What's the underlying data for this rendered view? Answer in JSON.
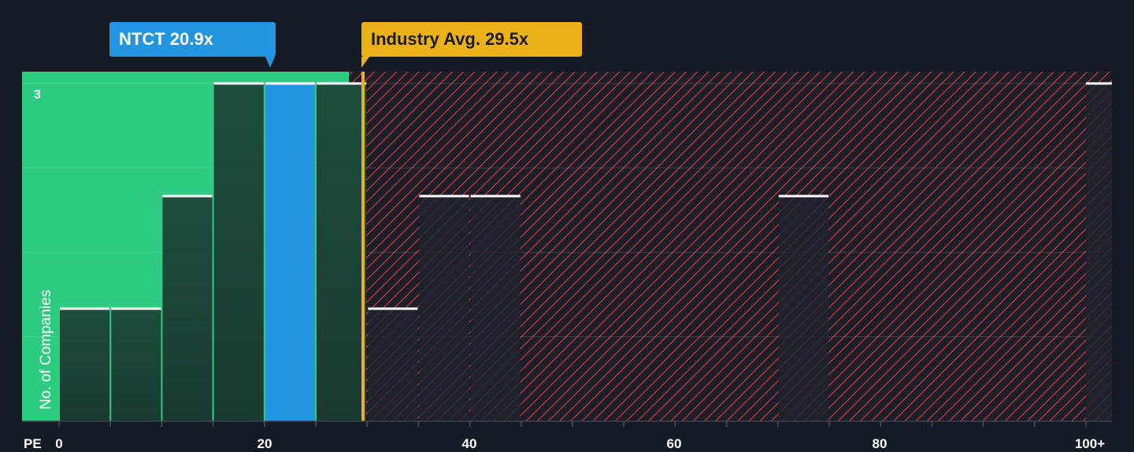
{
  "callouts": {
    "company": "NTCT 20.9x",
    "industry": "Industry Avg. 29.5x"
  },
  "colors": {
    "background": "#151b24",
    "fair_zone": "#2ecc80",
    "company_bar": "#2394e0",
    "industry": "#ebb118",
    "hatch": "#d23a3a"
  },
  "chart_data": {
    "type": "bar",
    "xlabel": "PE",
    "ylabel": "No. of Companies",
    "x_ticks": [
      "0",
      "20",
      "40",
      "60",
      "80",
      "100+"
    ],
    "y_ticks": [
      "3"
    ],
    "ylim": [
      0,
      3
    ],
    "bin_width": 5,
    "company": {
      "label": "NTCT",
      "value": 20.9
    },
    "industry_average": 29.5,
    "bins": [
      {
        "start": 0,
        "count": 1
      },
      {
        "start": 5,
        "count": 1
      },
      {
        "start": 10,
        "count": 2
      },
      {
        "start": 15,
        "count": 3
      },
      {
        "start": 20,
        "count": 3
      },
      {
        "start": 25,
        "count": 3
      },
      {
        "start": 30,
        "count": 1
      },
      {
        "start": 35,
        "count": 2
      },
      {
        "start": 40,
        "count": 2
      },
      {
        "start": 70,
        "count": 2
      },
      {
        "start": 100,
        "count": 3
      }
    ]
  }
}
